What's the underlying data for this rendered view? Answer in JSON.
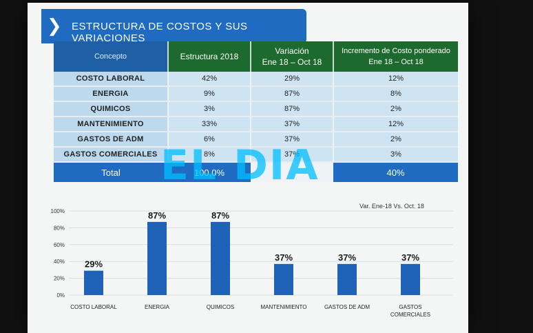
{
  "banner": {
    "title": "ESTRUCTURA DE COSTOS Y SUS VARIACIONES"
  },
  "table": {
    "headers": {
      "concepto": "Concepto",
      "estructura": "Estructura 2018",
      "variacion_l1": "Variación",
      "variacion_l2": "Ene 18 – Oct 18",
      "incremento_l1": "Incremento de Costo ponderado",
      "incremento_l2": "Ene 18 – Oct 18"
    },
    "rows": [
      {
        "concepto": "COSTO LABORAL",
        "estructura": "42%",
        "variacion": "29%",
        "incremento": "12%"
      },
      {
        "concepto": "ENERGIA",
        "estructura": "9%",
        "variacion": "87%",
        "incremento": "8%"
      },
      {
        "concepto": "QUIMICOS",
        "estructura": "3%",
        "variacion": "87%",
        "incremento": "2%"
      },
      {
        "concepto": "MANTENIMIENTO",
        "estructura": "33%",
        "variacion": "37%",
        "incremento": "12%"
      },
      {
        "concepto": "GASTOS DE ADM",
        "estructura": "6%",
        "variacion": "37%",
        "incremento": "2%"
      },
      {
        "concepto": "GASTOS COMERCIALES",
        "estructura": "8%",
        "variacion": "37%",
        "incremento": "3%"
      }
    ],
    "total": {
      "label": "Total",
      "estructura": "100,0%",
      "incremento": "40%"
    }
  },
  "watermark": "EL DIA",
  "chart_data": {
    "type": "bar",
    "title": "Var. Ene-18 Vs. Oct. 18",
    "categories": [
      "COSTO LABORAL",
      "ENERGIA",
      "QUIMICOS",
      "MANTENIMIENTO",
      "GASTOS DE ADM",
      "GASTOS COMERCIALES"
    ],
    "values": [
      29,
      87,
      87,
      37,
      37,
      37
    ],
    "data_labels": [
      "29%",
      "87%",
      "87%",
      "37%",
      "37%",
      "37%"
    ],
    "yticks": [
      "0%",
      "20%",
      "40%",
      "60%",
      "80%",
      "100%"
    ],
    "ylim": [
      0,
      100
    ],
    "bar_color": "#1f63b8",
    "grid": true,
    "legend": "none"
  }
}
